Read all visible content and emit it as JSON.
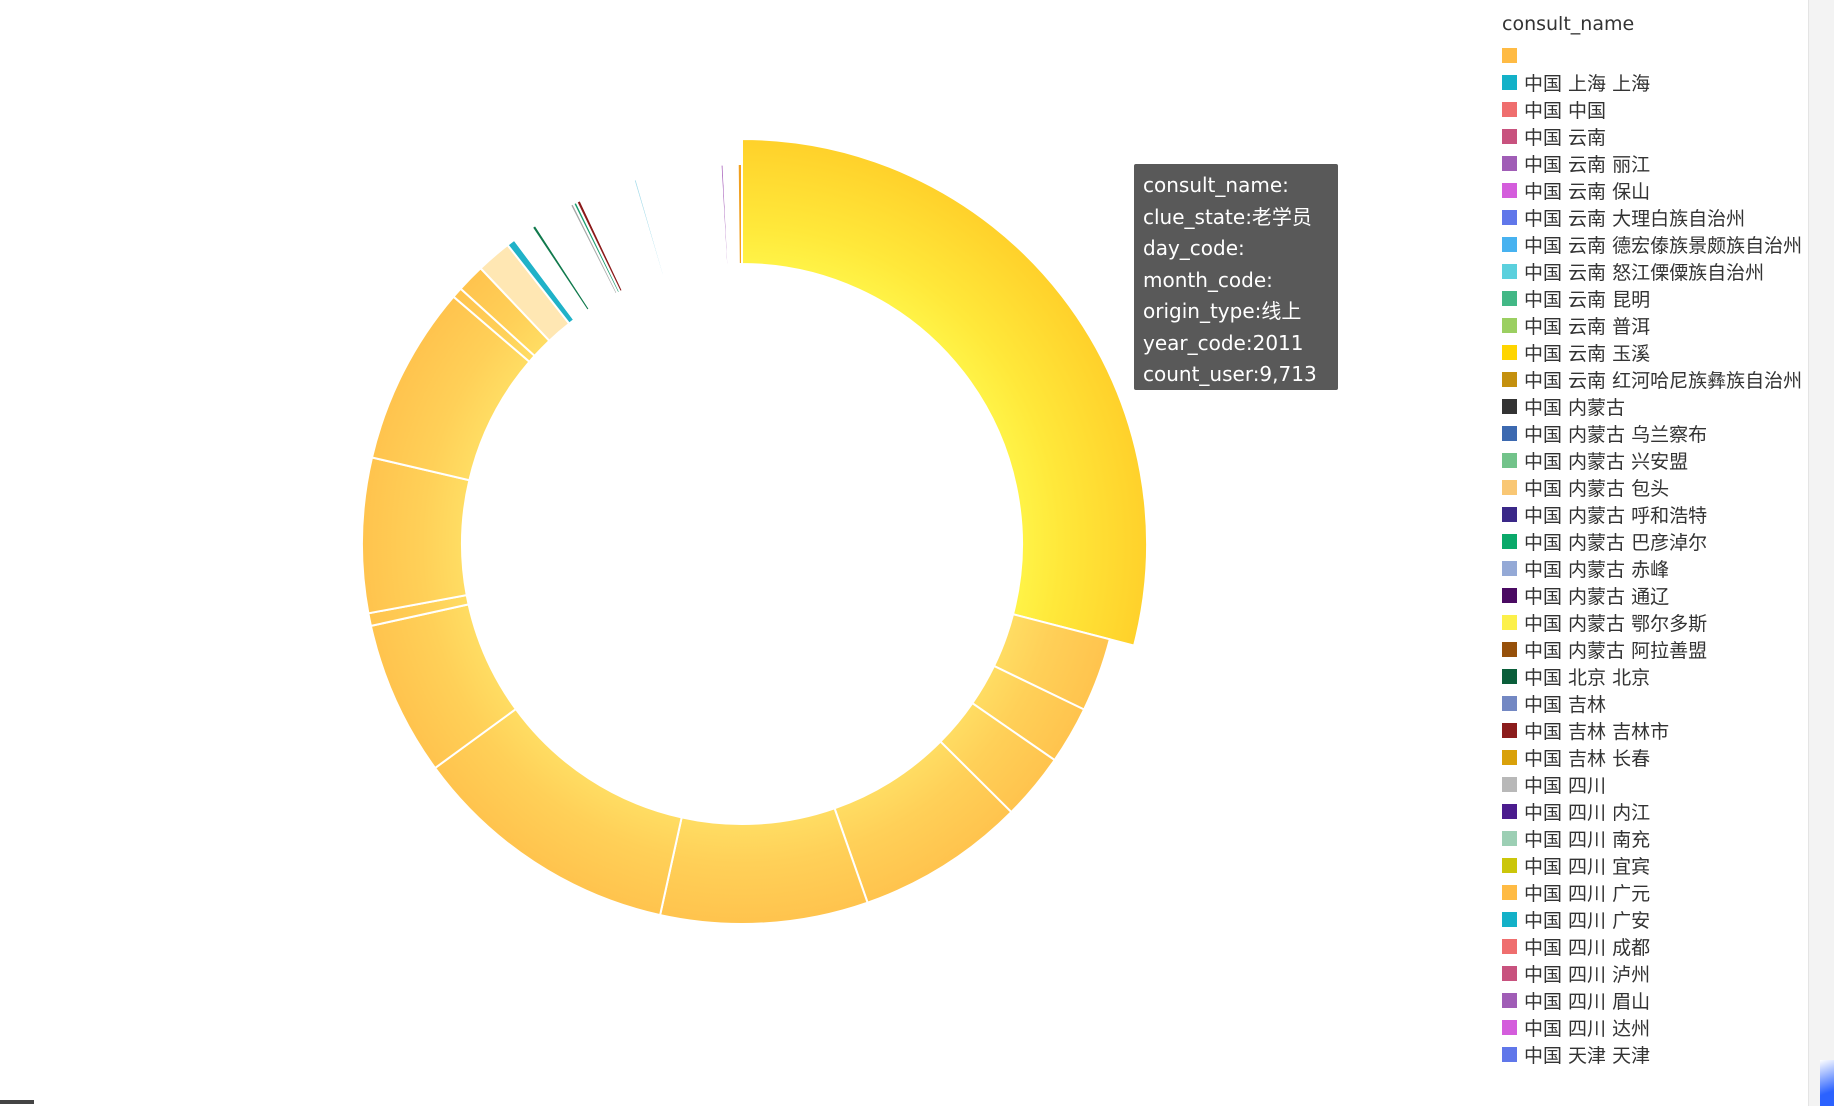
{
  "chart_data": {
    "type": "pie",
    "donut": true,
    "legend_title": "consult_name",
    "legend_position": "right",
    "slices": [
      {
        "label": "",
        "value": 9713,
        "color": "#ffd400",
        "highlighted": true
      },
      {
        "label": "",
        "value": 1050,
        "color": "#ffbf3a"
      },
      {
        "label": "",
        "value": 820,
        "color": "#ffbf3a"
      },
      {
        "label": "",
        "value": 950,
        "color": "#ffbf3a"
      },
      {
        "label": "",
        "value": 2400,
        "color": "#ffbf3a"
      },
      {
        "label": "",
        "value": 2950,
        "color": "#ffbf3a"
      },
      {
        "label": "",
        "value": 3850,
        "color": "#ffbf3a"
      },
      {
        "label": "",
        "value": 2200,
        "color": "#ffbf3a"
      },
      {
        "label": "",
        "value": 180,
        "color": "#ffbf3a"
      },
      {
        "label": "",
        "value": 2200,
        "color": "#ffbf3a"
      },
      {
        "label": "",
        "value": 2550,
        "color": "#ffbf3a"
      },
      {
        "label": "",
        "value": 150,
        "color": "#ffbf3a"
      },
      {
        "label": "",
        "value": 400,
        "color": "#ffbf3a"
      },
      {
        "label": "",
        "value": 500,
        "color": "#ffe7b3"
      },
      {
        "label": "",
        "value": 120,
        "color": "#20b2c8"
      },
      {
        "label": "",
        "value": 300,
        "color": "#ffffff"
      },
      {
        "label": "",
        "value": 60,
        "color": "#117a4d"
      },
      {
        "label": "",
        "value": 560,
        "color": "#ffffff"
      },
      {
        "label": "",
        "value": 50,
        "color": "#a8a8a8"
      },
      {
        "label": "",
        "value": 50,
        "color": "#1a9e6e"
      },
      {
        "label": "",
        "value": 60,
        "color": "#8b1a1a"
      },
      {
        "label": "",
        "value": 800,
        "color": "#ffffff"
      },
      {
        "label": "",
        "value": 40,
        "color": "#a6dcea"
      },
      {
        "label": "",
        "value": 1200,
        "color": "#ffffff"
      },
      {
        "label": "",
        "value": 40,
        "color": "#a35ab8"
      },
      {
        "label": "",
        "value": 200,
        "color": "#ffffff"
      },
      {
        "label": "",
        "value": 60,
        "color": "#f0a020"
      }
    ]
  },
  "legend": {
    "title": "consult_name",
    "items": [
      {
        "label": "",
        "color": "#ffbb44"
      },
      {
        "label": "中国 上海 上海",
        "color": "#13b1c8"
      },
      {
        "label": "中国 中国",
        "color": "#ef6e6e"
      },
      {
        "label": "中国 云南",
        "color": "#c8527e"
      },
      {
        "label": "中国 云南 丽江",
        "color": "#a05db6"
      },
      {
        "label": "中国 云南 保山",
        "color": "#d45ddc"
      },
      {
        "label": "中国 云南 大理白族自治州",
        "color": "#6077ea"
      },
      {
        "label": "中国 云南 德宏傣族景颇族自治州",
        "color": "#47b2f0"
      },
      {
        "label": "中国 云南 怒江傈僳族自治州",
        "color": "#5bd0dd"
      },
      {
        "label": "中国 云南 昆明",
        "color": "#42b886"
      },
      {
        "label": "中国 云南 普洱",
        "color": "#9bcf61"
      },
      {
        "label": "中国 云南 玉溪",
        "color": "#ffd500"
      },
      {
        "label": "中国 云南 红河哈尼族彝族自治州",
        "color": "#c4900e"
      },
      {
        "label": "中国 内蒙古",
        "color": "#333333"
      },
      {
        "label": "中国 内蒙古 乌兰察布",
        "color": "#3c69b0"
      },
      {
        "label": "中国 内蒙古 兴安盟",
        "color": "#72c38a"
      },
      {
        "label": "中国 内蒙古 包头",
        "color": "#f9c774"
      },
      {
        "label": "中国 内蒙古 呼和浩特",
        "color": "#3a2888"
      },
      {
        "label": "中国 内蒙古 巴彦淖尔",
        "color": "#0aa96a"
      },
      {
        "label": "中国 内蒙古 赤峰",
        "color": "#94a9d6"
      },
      {
        "label": "中国 内蒙古 通辽",
        "color": "#4a0a62"
      },
      {
        "label": "中国 内蒙古 鄂尔多斯",
        "color": "#fcf04a"
      },
      {
        "label": "中国 内蒙古 阿拉善盟",
        "color": "#96500a"
      },
      {
        "label": "中国 北京 北京",
        "color": "#0a5e3a"
      },
      {
        "label": "中国 吉林",
        "color": "#7388c3"
      },
      {
        "label": "中国 吉林 吉林市",
        "color": "#8b1c1c"
      },
      {
        "label": "中国 吉林 长春",
        "color": "#d9a10a"
      },
      {
        "label": "中国 四川",
        "color": "#b8b8b8"
      },
      {
        "label": "中国 四川 内江",
        "color": "#4b1c8e"
      },
      {
        "label": "中国 四川 南充",
        "color": "#9ccfb4"
      },
      {
        "label": "中国 四川 宜宾",
        "color": "#cbc60a"
      },
      {
        "label": "中国 四川 广元",
        "color": "#ffbb44"
      },
      {
        "label": "中国 四川 广安",
        "color": "#13b1c8"
      },
      {
        "label": "中国 四川 成都",
        "color": "#ef6e6e"
      },
      {
        "label": "中国 四川 泸州",
        "color": "#c8527e"
      },
      {
        "label": "中国 四川 眉山",
        "color": "#a05db6"
      },
      {
        "label": "中国 四川 达州",
        "color": "#d45ddc"
      },
      {
        "label": "中国 天津 天津",
        "color": "#6077ea"
      }
    ]
  },
  "tooltip": {
    "lines": [
      "consult_name:",
      "clue_state:老学员",
      "day_code:",
      "month_code:",
      "origin_type:线上",
      "year_code:2011",
      "count_user:9,713"
    ]
  }
}
